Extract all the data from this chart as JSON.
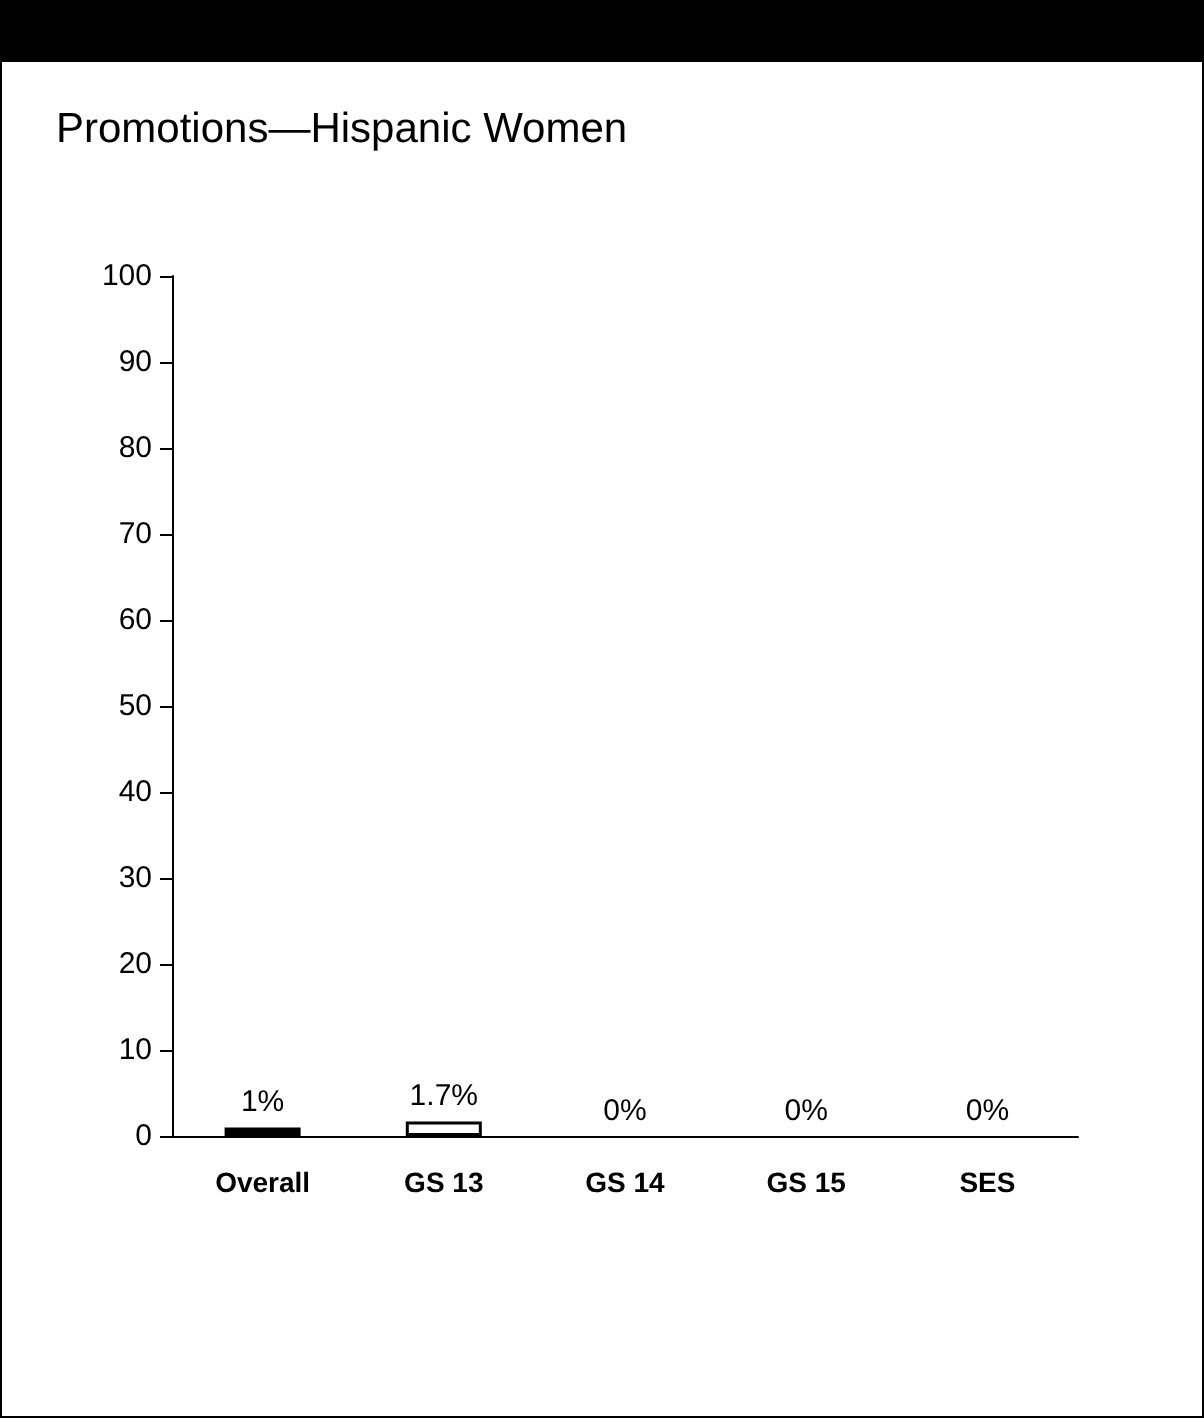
{
  "chart_data": {
    "type": "bar",
    "title": "Promotions—Hispanic Women",
    "categories": [
      "Overall",
      "GS 13",
      "GS 14",
      "GS 15",
      "SES"
    ],
    "values": [
      1,
      1.7,
      0,
      0,
      0
    ],
    "colors": [
      "#000000",
      "#ffffff",
      "#ffffff",
      "#ffffff",
      "#ffffff"
    ],
    "value_labels": [
      "1%",
      "1.7%",
      "0%",
      "0%",
      "0%"
    ],
    "ylim": [
      0,
      100
    ],
    "yticks": [
      0,
      10,
      20,
      30,
      40,
      50,
      60,
      70,
      80,
      90,
      100
    ],
    "grid": false
  }
}
